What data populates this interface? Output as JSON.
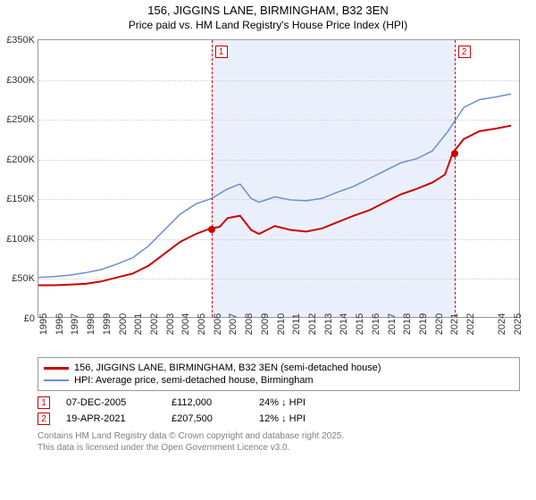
{
  "title_main": "156, JIGGINS LANE, BIRMINGHAM, B32 3EN",
  "title_sub": "Price paid vs. HM Land Registry's House Price Index (HPI)",
  "chart": {
    "type": "line",
    "background_color": "#ffffff",
    "grid_color": "#cccccc",
    "axis_color": "#999999",
    "shaded_color": "#eaf0fb",
    "x_years": [
      1995,
      1996,
      1997,
      1998,
      1999,
      2000,
      2001,
      2002,
      2003,
      2004,
      2005,
      2006,
      2007,
      2008,
      2009,
      2010,
      2011,
      2012,
      2013,
      2014,
      2015,
      2016,
      2017,
      2018,
      2019,
      2020,
      2021,
      2022,
      2024,
      2025
    ],
    "x_range": [
      1995,
      2025.5
    ],
    "ylim": [
      0,
      350000
    ],
    "ytick_step": 50000,
    "ytick_labels": [
      "£0",
      "£50K",
      "£100K",
      "£150K",
      "£200K",
      "£250K",
      "£300K",
      "£350K"
    ],
    "shaded_regions": [
      [
        2005.93,
        2021.3
      ]
    ],
    "series": [
      {
        "name": "price_paid",
        "color": "#cc0000",
        "width": 2,
        "points": [
          [
            1995,
            40000
          ],
          [
            1996,
            40000
          ],
          [
            1997,
            41000
          ],
          [
            1998,
            42000
          ],
          [
            1999,
            45000
          ],
          [
            2000,
            50000
          ],
          [
            2001,
            55000
          ],
          [
            2002,
            65000
          ],
          [
            2003,
            80000
          ],
          [
            2004,
            95000
          ],
          [
            2005,
            105000
          ],
          [
            2005.93,
            112000
          ],
          [
            2006.5,
            114000
          ],
          [
            2007,
            125000
          ],
          [
            2007.8,
            128000
          ],
          [
            2008.5,
            110000
          ],
          [
            2009,
            105000
          ],
          [
            2010,
            115000
          ],
          [
            2011,
            110000
          ],
          [
            2012,
            108000
          ],
          [
            2013,
            112000
          ],
          [
            2014,
            120000
          ],
          [
            2015,
            128000
          ],
          [
            2016,
            135000
          ],
          [
            2017,
            145000
          ],
          [
            2018,
            155000
          ],
          [
            2019,
            162000
          ],
          [
            2020,
            170000
          ],
          [
            2020.8,
            180000
          ],
          [
            2021.3,
            207500
          ],
          [
            2022,
            225000
          ],
          [
            2023,
            235000
          ],
          [
            2024,
            238000
          ],
          [
            2025,
            242000
          ]
        ]
      },
      {
        "name": "hpi",
        "color": "#6b8fc9",
        "width": 1.5,
        "points": [
          [
            1995,
            50000
          ],
          [
            1996,
            51000
          ],
          [
            1997,
            53000
          ],
          [
            1998,
            56000
          ],
          [
            1999,
            60000
          ],
          [
            2000,
            67000
          ],
          [
            2001,
            75000
          ],
          [
            2002,
            90000
          ],
          [
            2003,
            110000
          ],
          [
            2004,
            130000
          ],
          [
            2005,
            143000
          ],
          [
            2006,
            150000
          ],
          [
            2007,
            162000
          ],
          [
            2007.8,
            168000
          ],
          [
            2008.5,
            150000
          ],
          [
            2009,
            145000
          ],
          [
            2010,
            152000
          ],
          [
            2011,
            148000
          ],
          [
            2012,
            147000
          ],
          [
            2013,
            150000
          ],
          [
            2014,
            158000
          ],
          [
            2015,
            165000
          ],
          [
            2016,
            175000
          ],
          [
            2017,
            185000
          ],
          [
            2018,
            195000
          ],
          [
            2019,
            200000
          ],
          [
            2020,
            210000
          ],
          [
            2021,
            235000
          ],
          [
            2022,
            265000
          ],
          [
            2023,
            275000
          ],
          [
            2024,
            278000
          ],
          [
            2025,
            282000
          ]
        ]
      }
    ],
    "sale_points": [
      {
        "label": "1",
        "year": 2005.93,
        "price": 112000,
        "marker_y": 38000
      },
      {
        "label": "2",
        "year": 2021.3,
        "price": 207500,
        "marker_y": 38000
      }
    ]
  },
  "legend": {
    "items": [
      {
        "color": "#cc0000",
        "width": 3,
        "label": "156, JIGGINS LANE, BIRMINGHAM, B32 3EN (semi-detached house)"
      },
      {
        "color": "#6b8fc9",
        "width": 2,
        "label": "HPI: Average price, semi-detached house, Birmingham"
      }
    ]
  },
  "records": [
    {
      "marker": "1",
      "date": "07-DEC-2005",
      "price": "£112,000",
      "delta": "24% ↓ HPI"
    },
    {
      "marker": "2",
      "date": "19-APR-2021",
      "price": "£207,500",
      "delta": "12% ↓ HPI"
    }
  ],
  "attribution_line1": "Contains HM Land Registry data © Crown copyright and database right 2025.",
  "attribution_line2": "This data is licensed under the Open Government Licence v3.0."
}
